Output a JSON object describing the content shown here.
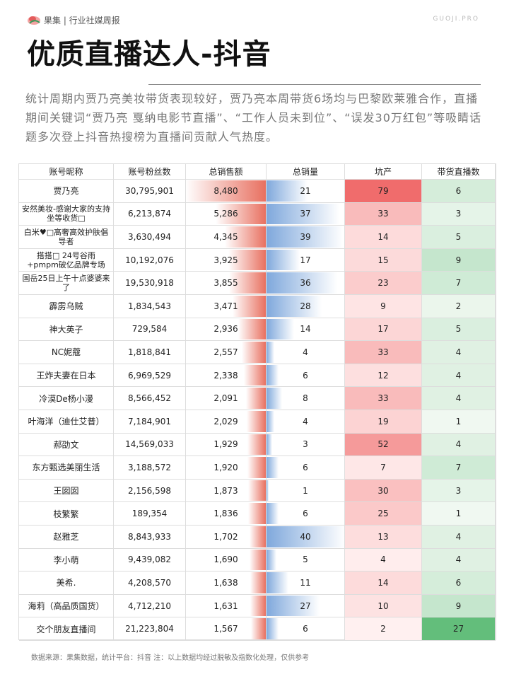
{
  "header": {
    "brand": "果集 | 行业社媒周报",
    "site": "GUOJI.PRO",
    "title": "优质直播达人-抖音"
  },
  "intro": "统计周期内贾乃亮美妆带货表现较好，贾乃亮本周带货6场均与巴黎欧莱雅合作，直播期间关键词“贾乃亮 戛纳电影节直播”、“工作人员未到位”、“误发30万红包”等吸睛话题多次登上抖音热搜榜为直播间贡献人气热度。",
  "table": {
    "columns": [
      "账号昵称",
      "账号粉丝数",
      "总销售额",
      "总销量",
      "坑产",
      "带货直播数"
    ],
    "rows": [
      [
        "贾乃亮",
        "30,795,901",
        "8,480",
        "21",
        "79",
        "6"
      ],
      [
        "安然美妆-感谢大家的支持坐等收货□",
        "6,213,874",
        "5,286",
        "37",
        "33",
        "3"
      ],
      [
        "白米♥□高奢高效护肤倡导者",
        "3,630,494",
        "4,345",
        "39",
        "14",
        "5"
      ],
      [
        "搭搭□ 24号谷雨+pmpm破亿品牌专场",
        "10,192,076",
        "3,925",
        "17",
        "15",
        "9"
      ],
      [
        "国岳25日上午十点婆婆来了",
        "19,530,918",
        "3,855",
        "36",
        "23",
        "7"
      ],
      [
        "霹雳乌贼",
        "1,834,543",
        "3,471",
        "28",
        "9",
        "2"
      ],
      [
        "神大英子",
        "729,584",
        "2,936",
        "14",
        "17",
        "5"
      ],
      [
        "NC妮蔻",
        "1,818,841",
        "2,557",
        "4",
        "33",
        "4"
      ],
      [
        "王炸夫妻在日本",
        "6,969,529",
        "2,338",
        "6",
        "12",
        "4"
      ],
      [
        "冷漠De杨小漫",
        "8,566,452",
        "2,091",
        "8",
        "33",
        "4"
      ],
      [
        "叶海洋（迪仕艾普）",
        "7,184,901",
        "2,029",
        "4",
        "19",
        "1"
      ],
      [
        "郝劭文",
        "14,569,033",
        "1,929",
        "3",
        "52",
        "4"
      ],
      [
        "东方甄选美丽生活",
        "3,188,572",
        "1,920",
        "6",
        "7",
        "7"
      ],
      [
        "王囡囡",
        "2,156,598",
        "1,873",
        "1",
        "30",
        "3"
      ],
      [
        "枝繁繁",
        "189,354",
        "1,836",
        "6",
        "25",
        "1"
      ],
      [
        "赵雅芝",
        "8,843,933",
        "1,702",
        "40",
        "13",
        "4"
      ],
      [
        "李小萌",
        "9,439,082",
        "1,690",
        "5",
        "4",
        "4"
      ],
      [
        "美希.",
        "4,208,570",
        "1,638",
        "11",
        "14",
        "6"
      ],
      [
        "海莉（高品质国货）",
        "4,712,210",
        "1,631",
        "27",
        "10",
        "9"
      ],
      [
        "交个朋友直播间",
        "21,223,804",
        "1,567",
        "6",
        "2",
        "27"
      ]
    ]
  },
  "footer": "数据来源：果集数据，统计平台：抖音 注：以上数据均经过脱敏及指数化处理，仅供参考"
}
